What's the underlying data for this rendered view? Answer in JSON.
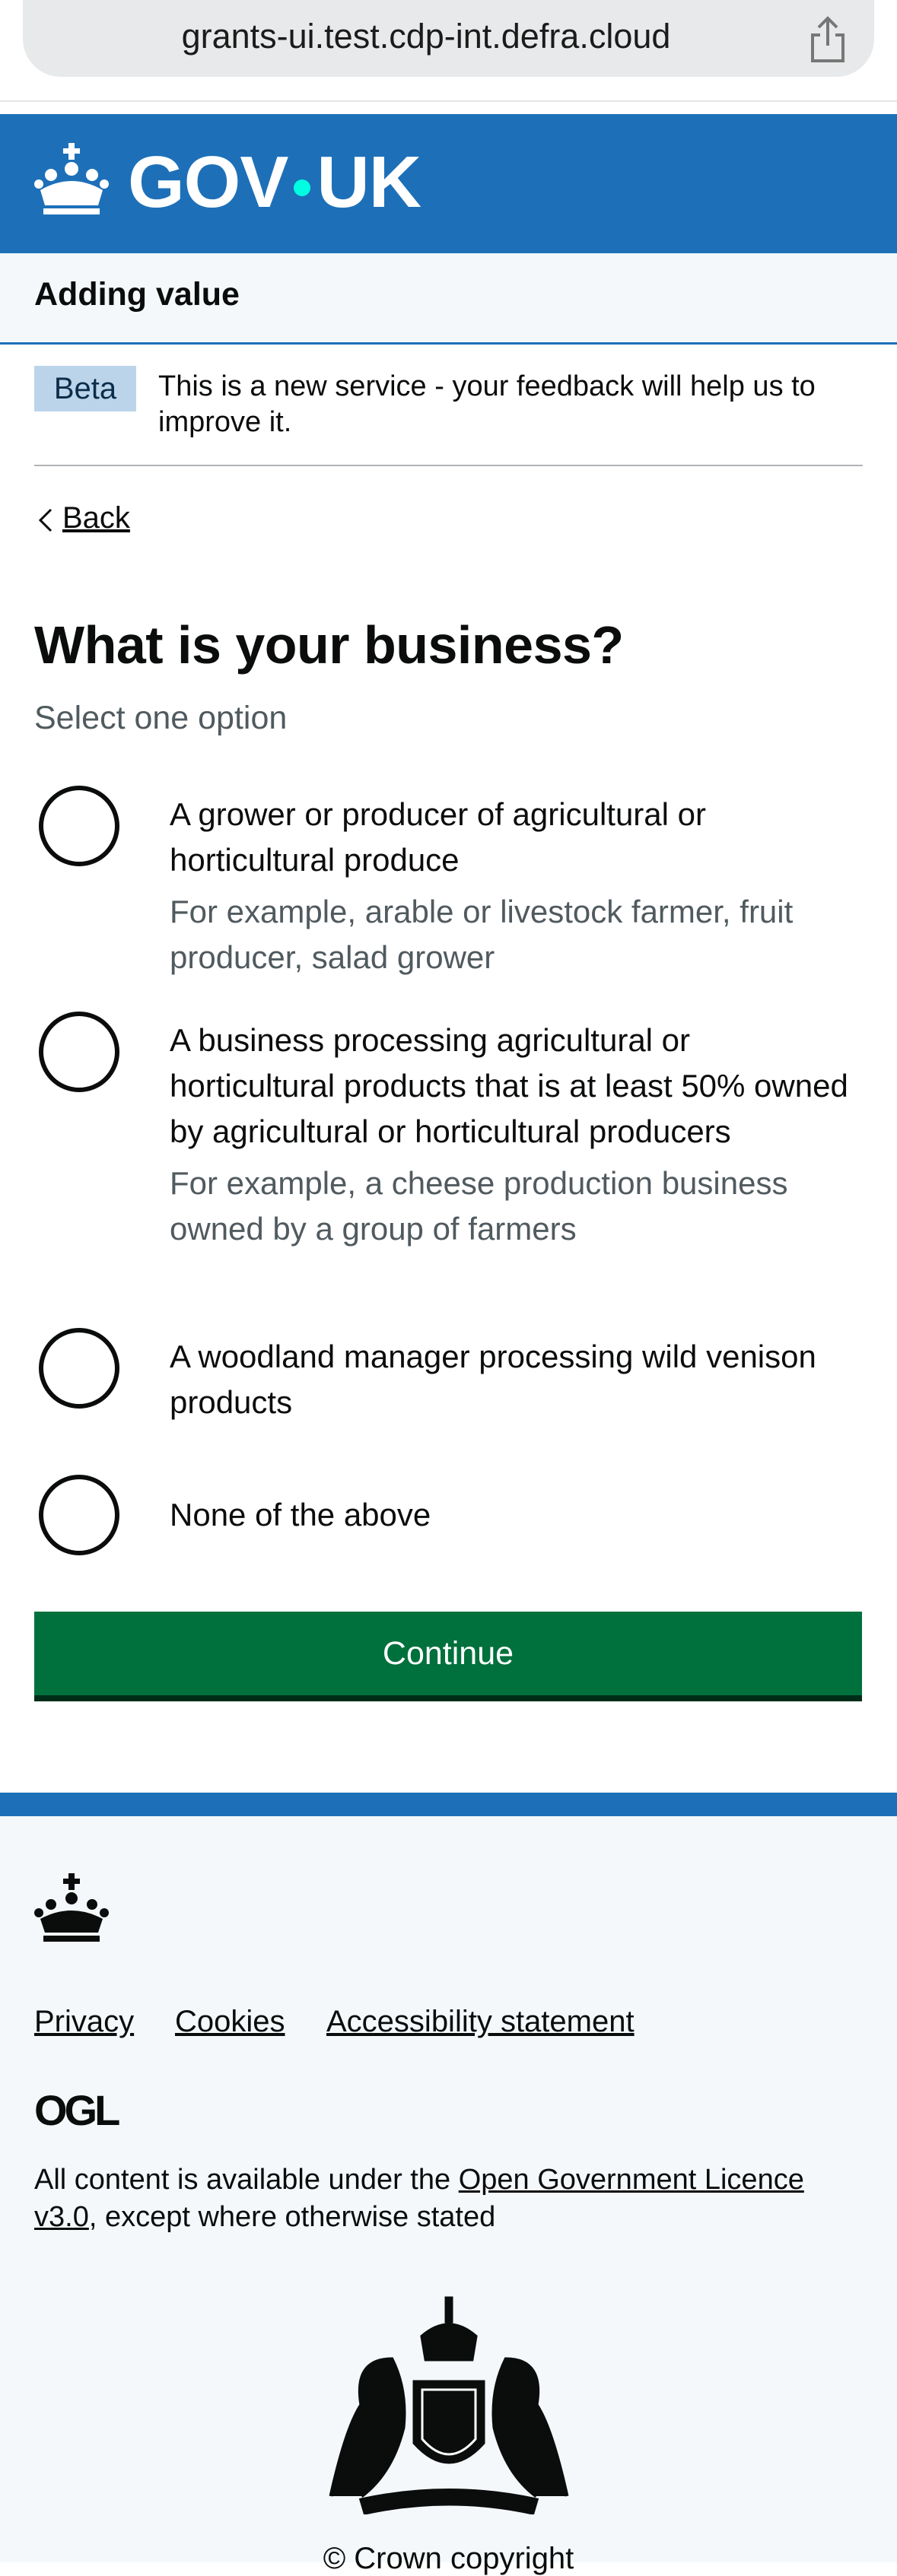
{
  "browser": {
    "url": "grants-ui.test.cdp-int.defra.cloud"
  },
  "header": {
    "logo_left": "GOV",
    "logo_right": "UK"
  },
  "service_name": "Adding value",
  "phase_banner": {
    "tag": "Beta",
    "text": "This is a new service - your feedback will help us to improve it."
  },
  "back_link": "Back",
  "question": {
    "title": "What is your business?",
    "hint": "Select one option",
    "options": [
      {
        "label": "A grower or producer of agricultural or horticultural produce",
        "hint": "For example, arable or livestock farmer, fruit producer, salad grower"
      },
      {
        "label": "A business processing agricultural or horticultural products that is at least 50% owned by agricultural or horticultural producers",
        "hint": "For example, a cheese production business owned by a group of farmers"
      },
      {
        "label": "A woodland manager processing wild venison products",
        "hint": null
      },
      {
        "label": "None of the above",
        "hint": null
      }
    ]
  },
  "button": "Continue",
  "footer": {
    "links": [
      "Privacy",
      "Cookies",
      "Accessibility statement"
    ],
    "ogl": "OGL",
    "licence": {
      "before": "All content is available under the ",
      "link": "Open Government Licence v3.0",
      "after": ", except where otherwise stated"
    },
    "copyright": "© Crown copyright"
  }
}
